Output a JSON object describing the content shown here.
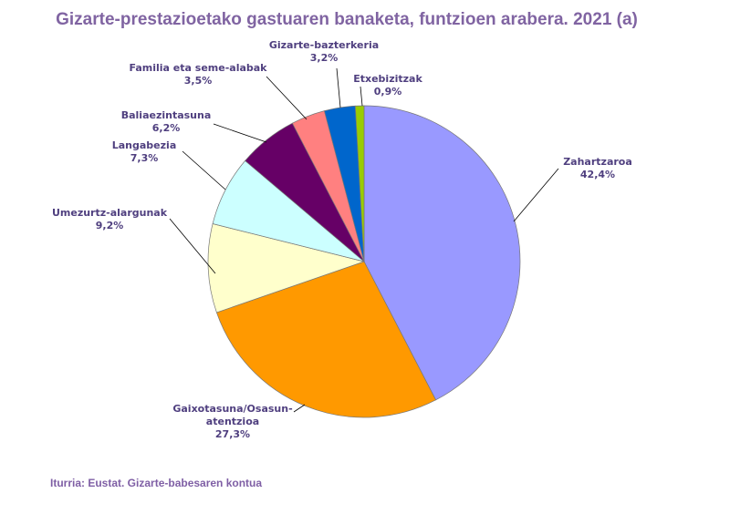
{
  "chart_data": {
    "type": "pie",
    "title": "Gizarte-prestazioetako gastuaren banaketa, funtzioen arabera. 2021 (a)",
    "source": "Iturria: Eustat. Gizarte-babesaren kontua",
    "categories": [
      "Zahartzaroa",
      "Gaixotasuna/Osasun-atentzioa",
      "Umezurtz-alargunak",
      "Langabezia",
      "Baliaezintasuna",
      "Familia eta seme-alabak",
      "Gizarte-bazterkeria",
      "Etxebizitzak"
    ],
    "values": [
      42.4,
      27.3,
      9.2,
      7.3,
      6.2,
      3.5,
      3.2,
      0.9
    ],
    "value_labels": [
      "42,4%",
      "27,3%",
      "9,2%",
      "7,3%",
      "6,2%",
      "3,5%",
      "3,2%",
      "0,9%"
    ],
    "colors": [
      "#9999ff",
      "#ff9900",
      "#ffffcc",
      "#ccffff",
      "#660066",
      "#ff8080",
      "#0066cc",
      "#99cc00"
    ]
  }
}
